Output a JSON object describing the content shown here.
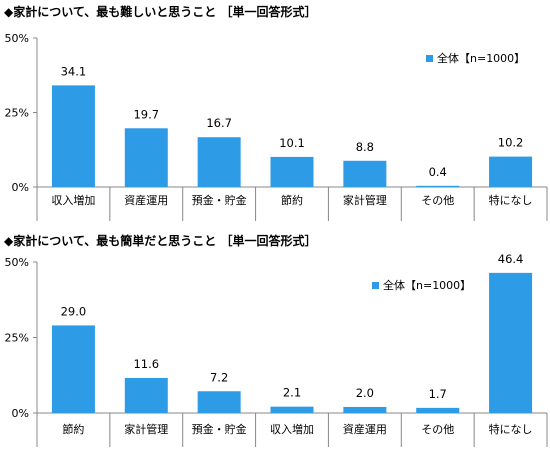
{
  "chart_data": [
    {
      "type": "bar",
      "title": "◆家計について、最も難しいと思うこと ［単一回答形式］",
      "categories": [
        "収入増加",
        "資産運用",
        "預金・貯金",
        "節約",
        "家計管理",
        "その他",
        "特になし"
      ],
      "series": [
        {
          "name": "全体【n=1000】",
          "values": [
            34.1,
            19.7,
            16.7,
            10.1,
            8.8,
            0.4,
            10.2
          ],
          "labels": [
            "34.1",
            "19.7",
            "16.7",
            "10.1",
            "8.8",
            "0.4",
            "10.2"
          ]
        }
      ],
      "yticks": [
        "0%",
        "25%",
        "50%"
      ],
      "ylim": [
        0,
        50
      ],
      "grid": false,
      "legend": "top-right",
      "color": "#2e9be6"
    },
    {
      "type": "bar",
      "title": "◆家計について、最も簡単だと思うこと ［単一回答形式］",
      "categories": [
        "節約",
        "家計管理",
        "預金・貯金",
        "収入増加",
        "資産運用",
        "その他",
        "特になし"
      ],
      "series": [
        {
          "name": "全体【n=1000】",
          "values": [
            29.0,
            11.6,
            7.2,
            2.1,
            2.0,
            1.7,
            46.4
          ],
          "labels": [
            "29.0",
            "11.6",
            "7.2",
            "2.1",
            "2.0",
            "1.7",
            "46.4"
          ]
        }
      ],
      "yticks": [
        "0%",
        "25%",
        "50%"
      ],
      "ylim": [
        0,
        50
      ],
      "grid": false,
      "legend": "top-right",
      "color": "#2e9be6"
    }
  ]
}
